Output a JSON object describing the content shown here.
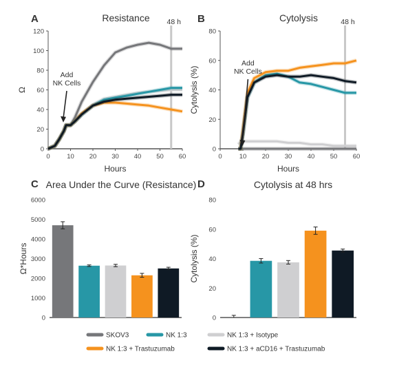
{
  "colors": {
    "SKOV3": "#76777a",
    "NK 1:3": "#2797a6",
    "NK 1:3 + Isotype": "#cfcfd1",
    "NK 1:3 + Trastuzumab": "#f5921e",
    "NK 1:3 + aCD16 + Trastuzumab": "#0f1a25",
    "axis": "#555555",
    "marker48": "#c8c8c8"
  },
  "legend": [
    "SKOV3",
    "NK 1:3",
    "NK 1:3 + Isotype",
    "NK 1:3 + Trastuzumab",
    "NK 1:3 + aCD16 + Trastuzumab"
  ],
  "chart_data": [
    {
      "panel": "A",
      "type": "line",
      "title": "Resistance",
      "xlabel": "Hours",
      "ylabel": "Ω",
      "xlim": [
        0,
        60
      ],
      "ylim": [
        0,
        120
      ],
      "xticks": [
        0,
        10,
        20,
        30,
        40,
        50,
        60
      ],
      "yticks": [
        0,
        20,
        40,
        60,
        80,
        100,
        120
      ],
      "marker_x": 55,
      "marker_label": "48 h",
      "annotation": {
        "lines": [
          "Add",
          "NK Cells"
        ],
        "x": 8
      },
      "x": [
        0,
        3,
        5,
        7,
        8,
        9,
        10,
        12,
        15,
        20,
        25,
        30,
        35,
        40,
        45,
        50,
        55,
        60
      ],
      "series": [
        {
          "name": "SKOV3",
          "values": [
            0,
            3,
            10,
            18,
            24,
            24,
            24,
            32,
            48,
            68,
            85,
            98,
            103,
            106,
            108,
            106,
            102,
            102
          ]
        },
        {
          "name": "NK 1:3",
          "values": [
            0,
            3,
            10,
            18,
            24,
            24,
            24,
            28,
            35,
            44,
            50,
            52,
            54,
            56,
            58,
            60,
            62,
            62
          ]
        },
        {
          "name": "NK 1:3 + Isotype",
          "values": [
            0,
            3,
            10,
            18,
            24,
            24,
            24,
            28,
            35,
            45,
            51,
            53,
            55,
            57,
            58,
            59,
            60,
            60
          ]
        },
        {
          "name": "NK 1:3 + Trastuzumab",
          "values": [
            0,
            3,
            10,
            18,
            24,
            24,
            24,
            28,
            36,
            44,
            47,
            47,
            46,
            45,
            44,
            42,
            40,
            38
          ]
        },
        {
          "name": "NK 1:3 + aCD16 + Trastuzumab",
          "values": [
            0,
            3,
            10,
            18,
            24,
            24,
            24,
            28,
            35,
            44,
            48,
            50,
            51,
            52,
            53,
            54,
            55,
            55
          ]
        }
      ]
    },
    {
      "panel": "B",
      "type": "line",
      "title": "Cytolysis",
      "xlabel": "Hours",
      "ylabel": "Cytolysis (%)",
      "xlim": [
        0,
        60
      ],
      "ylim": [
        0,
        80
      ],
      "xticks": [
        0,
        10,
        20,
        30,
        40,
        50,
        60
      ],
      "yticks": [
        0,
        20,
        40,
        60,
        80
      ],
      "marker_x": 55,
      "marker_label": "48 h",
      "annotation": {
        "lines": [
          "Add",
          "NK Cells"
        ],
        "x": 8
      },
      "x": [
        8,
        9,
        10,
        12,
        15,
        20,
        25,
        30,
        35,
        40,
        45,
        50,
        55,
        60
      ],
      "series": [
        {
          "name": "SKOV3",
          "values": [
            0,
            0,
            0,
            0,
            0,
            0,
            0,
            0,
            0,
            0,
            0,
            0,
            0,
            0
          ]
        },
        {
          "name": "NK 1:3",
          "values": [
            0,
            0,
            10,
            35,
            45,
            50,
            51,
            49,
            45,
            44,
            42,
            40,
            38,
            38
          ]
        },
        {
          "name": "NK 1:3 + Isotype",
          "values": [
            3,
            5,
            5,
            5,
            5,
            5,
            5,
            4,
            4,
            3,
            3,
            2,
            2,
            2
          ]
        },
        {
          "name": "NK 1:3 + Trastuzumab",
          "values": [
            0,
            0,
            12,
            38,
            48,
            52,
            53,
            53,
            55,
            56,
            57,
            58,
            58,
            60
          ]
        },
        {
          "name": "NK 1:3 + aCD16 + Trastuzumab",
          "values": [
            0,
            0,
            10,
            35,
            45,
            49,
            50,
            49,
            49,
            50,
            49,
            48,
            46,
            45
          ]
        }
      ]
    },
    {
      "panel": "C",
      "type": "bar",
      "title": "Area Under the Curve (Resistance)",
      "xlabel": "",
      "ylabel": "Ω*Hours",
      "ylim": [
        0,
        6000
      ],
      "yticks": [
        0,
        1000,
        2000,
        3000,
        4000,
        5000,
        6000
      ],
      "categories": [
        "SKOV3",
        "NK 1:3",
        "NK 1:3 + Isotype",
        "NK 1:3 + Trastuzumab",
        "NK 1:3 + aCD16 + Trastuzumab"
      ],
      "values": [
        4700,
        2640,
        2650,
        2150,
        2500
      ],
      "errors": [
        180,
        40,
        60,
        100,
        60
      ]
    },
    {
      "panel": "D",
      "type": "bar",
      "title": "Cytolysis at 48 hrs",
      "xlabel": "",
      "ylabel": "Cytolysis (%)",
      "ylim": [
        0,
        80
      ],
      "yticks": [
        0,
        20,
        40,
        60,
        80
      ],
      "categories": [
        "SKOV3",
        "NK 1:3",
        "NK 1:3 + Isotype",
        "NK 1:3 + Trastuzumab",
        "NK 1:3 + aCD16 + Trastuzumab"
      ],
      "values": [
        0,
        38.5,
        37.5,
        59,
        45.5
      ],
      "errors": [
        1.5,
        1.5,
        1.2,
        2.5,
        1.0
      ]
    }
  ]
}
